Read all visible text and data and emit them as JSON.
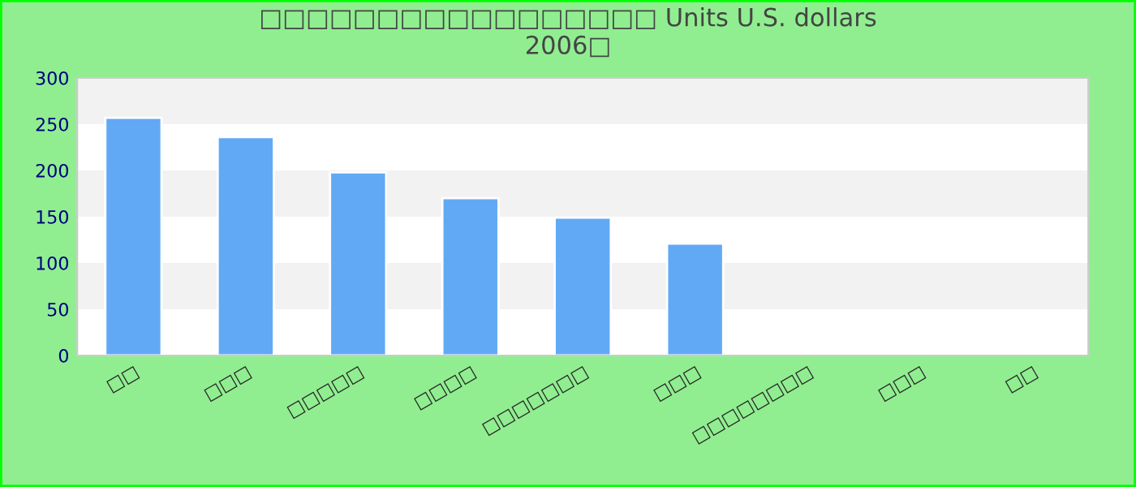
{
  "chart_data": {
    "type": "bar",
    "title": "□□□□□□□□□□□□□□□□□ Units U.S. dollars\n2006□",
    "categories": [
      "□□",
      "□□□",
      "□□□□□",
      "□□□□",
      "□□□□□□□",
      "□□□",
      "□□□□□□□□",
      "□□□",
      "□□"
    ],
    "values": [
      257,
      236,
      198,
      170,
      149,
      121,
      null,
      null,
      null
    ],
    "color": "#62a9f5",
    "ylim": [
      0,
      300
    ],
    "yticks": [
      0,
      50,
      100,
      150,
      200,
      250,
      300
    ],
    "bands": [
      {
        "axis": "y",
        "from": 50,
        "to": 100,
        "color": "#f2f2f2"
      },
      {
        "axis": "y",
        "from": 150,
        "to": 200,
        "color": "#f2f2f2"
      },
      {
        "axis": "y",
        "from": 250,
        "to": 300,
        "color": "#f2f2f2"
      }
    ],
    "grid": false,
    "legend": false
  }
}
